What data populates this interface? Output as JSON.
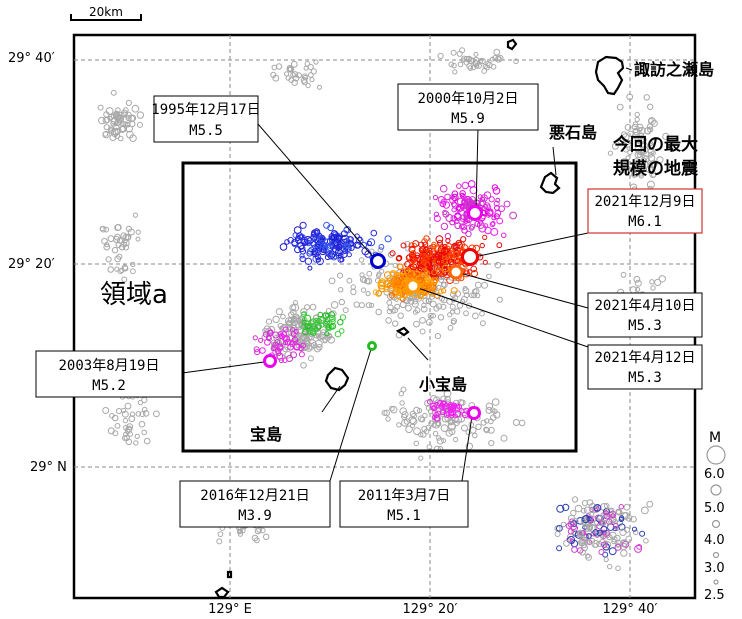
{
  "map": {
    "scale_label": "20km",
    "lat_labels": [
      "29° 40′",
      "29° 20′",
      "29° N"
    ],
    "lon_labels": [
      "129° E",
      "129° 20′",
      "129° 40′"
    ],
    "region_label": "領域a",
    "islands": {
      "suwanose": "諏訪之瀬島",
      "akuseki": "悪石島",
      "kodakara": "小宝島",
      "takara": "宝島"
    },
    "callout_largest": "今回の最大\n規模の地震",
    "events": [
      {
        "date": "1995年12月17日",
        "mag": "M5.5",
        "color": "#0000cc"
      },
      {
        "date": "2000年10月2日",
        "mag": "M5.9",
        "color": "#ee00ee"
      },
      {
        "date": "2021年12月9日",
        "mag": "M6.1",
        "color": "#ee0000",
        "highlight": true
      },
      {
        "date": "2021年4月10日",
        "mag": "M5.3",
        "color": "#ff6600"
      },
      {
        "date": "2021年4月12日",
        "mag": "M5.3",
        "color": "#ff9900"
      },
      {
        "date": "2003年8月19日",
        "mag": "M5.2",
        "color": "#ee00ee"
      },
      {
        "date": "2016年12月21日",
        "mag": "M3.9",
        "color": "#22bb22"
      },
      {
        "date": "2011年3月7日",
        "mag": "M5.1",
        "color": "#ee00ee"
      }
    ],
    "legend": {
      "title": "M",
      "values": [
        "6.0",
        "5.0",
        "4.0",
        "3.0",
        "2.5"
      ]
    }
  }
}
